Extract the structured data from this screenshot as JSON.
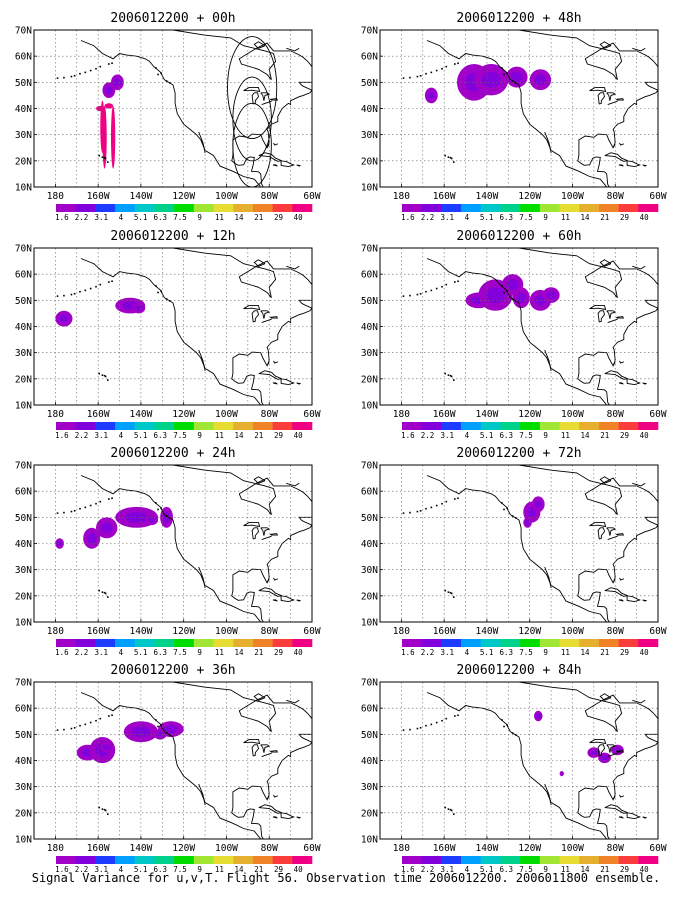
{
  "caption": "Signal Variance for u,v,T. Flight 56. Observation time 2006012200. 2006011800 ensemble.",
  "chart_data": {
    "type": "map",
    "y_axis_labels": [
      "70N",
      "60N",
      "50N",
      "40N",
      "30N",
      "20N",
      "10N"
    ],
    "x_axis_labels": [
      "180",
      "160W",
      "140W",
      "120W",
      "100W",
      "80W",
      "60W"
    ],
    "colorbar": {
      "labels": [
        "1.6",
        "2.2",
        "3.1",
        "4",
        "5.1",
        "6.3",
        "7.5",
        "9",
        "11",
        "14",
        "21",
        "29",
        "40"
      ],
      "colors": [
        "#a000c8",
        "#8200dc",
        "#1e3cff",
        "#00a0ff",
        "#00c8c8",
        "#00d28c",
        "#00dc00",
        "#a0e632",
        "#e6dc32",
        "#e6af2d",
        "#f08228",
        "#fa3c3c",
        "#f00082"
      ]
    },
    "panels": [
      {
        "title": "2006012200 + 00h",
        "blobs": [
          [
            151,
            50,
            3,
            3
          ],
          [
            155,
            47,
            3,
            3
          ],
          [
            155,
            41,
            2,
            1
          ],
          [
            159,
            40,
            2,
            1
          ],
          [
            153,
            29,
            1,
            12
          ],
          [
            157,
            29,
            1,
            12
          ],
          [
            158,
            33,
            1,
            10
          ]
        ]
      },
      {
        "title": "2006012200 + 12h",
        "blobs": [
          [
            176,
            43,
            4,
            3
          ],
          [
            145,
            48,
            7,
            3
          ],
          [
            141,
            47,
            3,
            2
          ]
        ]
      },
      {
        "title": "2006012200 + 24h",
        "blobs": [
          [
            178,
            40,
            2,
            2
          ],
          [
            163,
            42,
            4,
            4
          ],
          [
            156,
            46,
            5,
            4
          ],
          [
            142,
            50,
            10,
            4
          ],
          [
            128,
            50,
            3,
            4
          ],
          [
            135,
            49,
            3,
            2
          ]
        ]
      },
      {
        "title": "2006012200 + 36h",
        "blobs": [
          [
            165,
            43,
            5,
            3
          ],
          [
            158,
            44,
            6,
            5
          ],
          [
            156,
            45,
            3,
            2
          ],
          [
            140,
            51,
            8,
            4
          ],
          [
            126,
            52,
            6,
            3
          ],
          [
            131,
            50,
            3,
            2
          ]
        ]
      },
      {
        "title": "2006012200 + 48h",
        "blobs": [
          [
            166,
            45,
            3,
            3
          ],
          [
            146,
            50,
            8,
            7
          ],
          [
            138,
            51,
            8,
            6
          ],
          [
            126,
            52,
            5,
            4
          ],
          [
            115,
            51,
            5,
            4
          ]
        ]
      },
      {
        "title": "2006012200 + 60h",
        "blobs": [
          [
            144,
            50,
            6,
            3
          ],
          [
            136,
            52,
            8,
            6
          ],
          [
            128,
            56,
            5,
            4
          ],
          [
            124,
            51,
            4,
            4
          ],
          [
            115,
            50,
            5,
            4
          ],
          [
            110,
            52,
            4,
            3
          ]
        ]
      },
      {
        "title": "2006012200 + 72h",
        "blobs": [
          [
            119,
            52,
            4,
            4
          ],
          [
            116,
            55,
            3,
            3
          ],
          [
            121,
            48,
            2,
            2
          ]
        ]
      },
      {
        "title": "2006012200 + 84h",
        "blobs": [
          [
            116,
            57,
            2,
            2
          ],
          [
            105,
            35,
            1,
            1
          ],
          [
            90,
            43,
            3,
            2
          ],
          [
            79,
            44,
            3,
            2
          ],
          [
            85,
            41,
            3,
            2
          ]
        ]
      }
    ]
  }
}
